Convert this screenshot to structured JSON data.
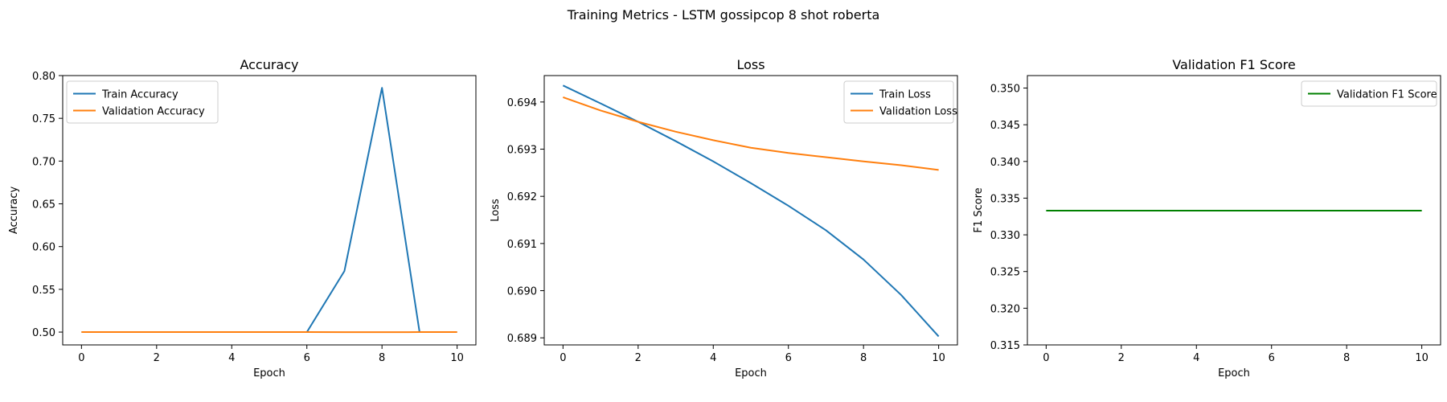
{
  "figure": {
    "suptitle": "Training Metrics - LSTM gossipcop 8 shot roberta"
  },
  "chart_data": [
    {
      "type": "line",
      "title": "Accuracy",
      "xlabel": "Epoch",
      "ylabel": "Accuracy",
      "xlim": [
        -0.5,
        10.5
      ],
      "ylim": [
        0.485,
        0.8
      ],
      "xticks": [
        0,
        2,
        4,
        6,
        8,
        10
      ],
      "yticks": [
        0.5,
        0.55,
        0.6,
        0.65,
        0.7,
        0.75,
        0.8
      ],
      "tick_decimals": 2,
      "legend_position": "upper-left",
      "grid": false,
      "x": [
        0,
        1,
        2,
        3,
        4,
        5,
        6,
        7,
        8,
        9,
        10
      ],
      "series": [
        {
          "name": "Train Accuracy",
          "color": "#1f77b4",
          "values": [
            0.5,
            0.5,
            0.5,
            0.5,
            0.5,
            0.5,
            0.5,
            0.5714,
            0.7857,
            0.5,
            0.5
          ]
        },
        {
          "name": "Validation Accuracy",
          "color": "#ff7f0e",
          "values": [
            0.5,
            0.5,
            0.5,
            0.5,
            0.5,
            0.5,
            0.5,
            0.4999,
            0.4999,
            0.5,
            0.5
          ]
        }
      ]
    },
    {
      "type": "line",
      "title": "Loss",
      "xlabel": "Epoch",
      "ylabel": "Loss",
      "xlim": [
        -0.5,
        10.5
      ],
      "ylim": [
        0.68885,
        0.69456
      ],
      "xticks": [
        0,
        2,
        4,
        6,
        8,
        10
      ],
      "yticks": [
        0.689,
        0.69,
        0.691,
        0.692,
        0.693,
        0.694
      ],
      "tick_decimals": 3,
      "legend_position": "upper-right",
      "grid": false,
      "x": [
        0,
        1,
        2,
        3,
        4,
        5,
        6,
        7,
        8,
        9,
        10
      ],
      "series": [
        {
          "name": "Train Loss",
          "color": "#1f77b4",
          "values": [
            0.69435,
            0.69397,
            0.69358,
            0.69317,
            0.69274,
            0.69228,
            0.6918,
            0.69128,
            0.69066,
            0.68991,
            0.68903
          ]
        },
        {
          "name": "Validation Loss",
          "color": "#ff7f0e",
          "values": [
            0.6941,
            0.69382,
            0.69358,
            0.69337,
            0.69319,
            0.69303,
            0.69292,
            0.69283,
            0.69274,
            0.69266,
            0.69256
          ]
        }
      ]
    },
    {
      "type": "line",
      "title": "Validation F1 Score",
      "xlabel": "Epoch",
      "ylabel": "F1 Score",
      "xlim": [
        -0.5,
        10.5
      ],
      "ylim": [
        0.315,
        0.3517
      ],
      "xticks": [
        0,
        2,
        4,
        6,
        8,
        10
      ],
      "yticks": [
        0.315,
        0.32,
        0.325,
        0.33,
        0.335,
        0.34,
        0.345,
        0.35
      ],
      "tick_decimals": 3,
      "legend_position": "upper-right",
      "grid": false,
      "x": [
        0,
        1,
        2,
        3,
        4,
        5,
        6,
        7,
        8,
        9,
        10
      ],
      "series": [
        {
          "name": "Validation F1 Score",
          "color": "#008000",
          "values": [
            0.3333,
            0.3333,
            0.3333,
            0.3333,
            0.3333,
            0.3333,
            0.3333,
            0.3333,
            0.3333,
            0.3333,
            0.3333
          ]
        }
      ]
    }
  ]
}
